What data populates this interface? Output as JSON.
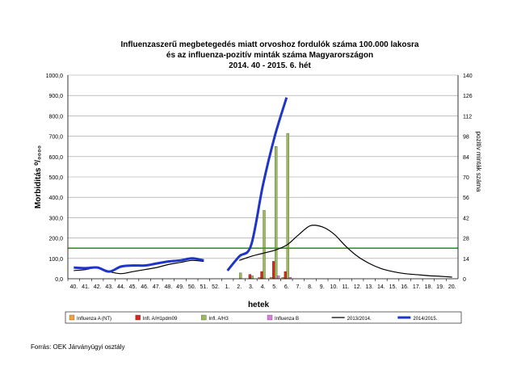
{
  "chart_data": {
    "type": "bar",
    "title_lines": [
      "Influenzaszerű megbetegedés miatt orvoshoz fordulók száma 100.000 lakosra",
      "és az influenza-pozitív minták száma Magyarországon",
      "2014. 40 - 2015. 6. hét"
    ],
    "xlabel": "hetek",
    "ylabel": "Morbiditás ⁰/₀₀₀₀",
    "ylabel_right": "pozitív minták száma",
    "y_left_ticks": [
      "0,0",
      "100,0",
      "200,0",
      "300,0",
      "400,0",
      "500,0",
      "600,0",
      "700,0",
      "800,0",
      "900,0",
      "1000,0"
    ],
    "y_left_range": [
      0,
      1000
    ],
    "y_right_ticks": [
      "0",
      "14",
      "28",
      "42",
      "56",
      "70",
      "84",
      "98",
      "112",
      "126",
      "140"
    ],
    "y_right_range": [
      0,
      140
    ],
    "categories": [
      "40.",
      "41.",
      "42.",
      "43.",
      "44.",
      "45.",
      "46.",
      "47.",
      "48.",
      "49.",
      "50.",
      "51.",
      "52.",
      "1.",
      "2.",
      "3.",
      "4.",
      "5.",
      "6.",
      "7.",
      "8.",
      "9.",
      "10.",
      "11.",
      "12.",
      "13.",
      "14.",
      "15.",
      "16.",
      "17.",
      "18.",
      "19.",
      "20."
    ],
    "threshold": 150,
    "bar_series": [
      {
        "name": "Influenza A (NT)",
        "color": "#f2a33a",
        "values": [
          0,
          0,
          0,
          0,
          0,
          0,
          0,
          0,
          0,
          0,
          0,
          0,
          0,
          0,
          0,
          0,
          1,
          1,
          1,
          0,
          0,
          0,
          0,
          0,
          0,
          0,
          0,
          0,
          0,
          0,
          0,
          0,
          0
        ]
      },
      {
        "name": "Infl. A/H1pdm09",
        "color": "#d9261c",
        "values": [
          0,
          0,
          0,
          0,
          0,
          0,
          0,
          0,
          0,
          0,
          0,
          0,
          0,
          0,
          0,
          3,
          5,
          12,
          5,
          0,
          0,
          0,
          0,
          0,
          0,
          0,
          0,
          0,
          0,
          0,
          0,
          0,
          0
        ]
      },
      {
        "name": "Infl. A/H3",
        "color": "#9bbb59",
        "values": [
          0,
          0,
          0,
          0,
          0,
          0,
          0,
          0,
          0,
          0,
          0,
          0,
          0,
          0,
          4,
          2,
          47,
          91,
          100,
          0,
          0,
          0,
          0,
          0,
          0,
          0,
          0,
          0,
          0,
          0,
          0,
          0,
          0
        ]
      },
      {
        "name": "Influenza B",
        "color": "#e07ae0",
        "values": [
          0,
          0,
          0,
          0,
          0,
          0,
          0,
          0,
          0,
          0,
          0,
          0,
          0,
          0,
          0,
          0,
          0,
          2,
          1,
          0,
          0,
          0,
          0,
          0,
          0,
          0,
          0,
          0,
          0,
          0,
          0,
          0,
          0
        ]
      }
    ],
    "line_series": [
      {
        "name": "2013/2014.",
        "color": "#000000",
        "values": [
          40,
          45,
          55,
          35,
          25,
          35,
          45,
          55,
          70,
          80,
          90,
          85,
          null,
          null,
          90,
          110,
          125,
          140,
          165,
          215,
          260,
          255,
          220,
          160,
          110,
          75,
          50,
          35,
          25,
          20,
          15,
          12,
          8
        ]
      },
      {
        "name": "2014/2015.",
        "color": "#1f35c8",
        "values": [
          55,
          52,
          55,
          35,
          60,
          65,
          65,
          75,
          85,
          90,
          100,
          90,
          null,
          40,
          110,
          165,
          460,
          700,
          890,
          null,
          null,
          null,
          null,
          null,
          null,
          null,
          null,
          null,
          null,
          null,
          null,
          null,
          null
        ]
      }
    ],
    "legend_position": "bottom",
    "grid": true
  },
  "source_text": "Forrás: OEK Járványügyi osztály"
}
